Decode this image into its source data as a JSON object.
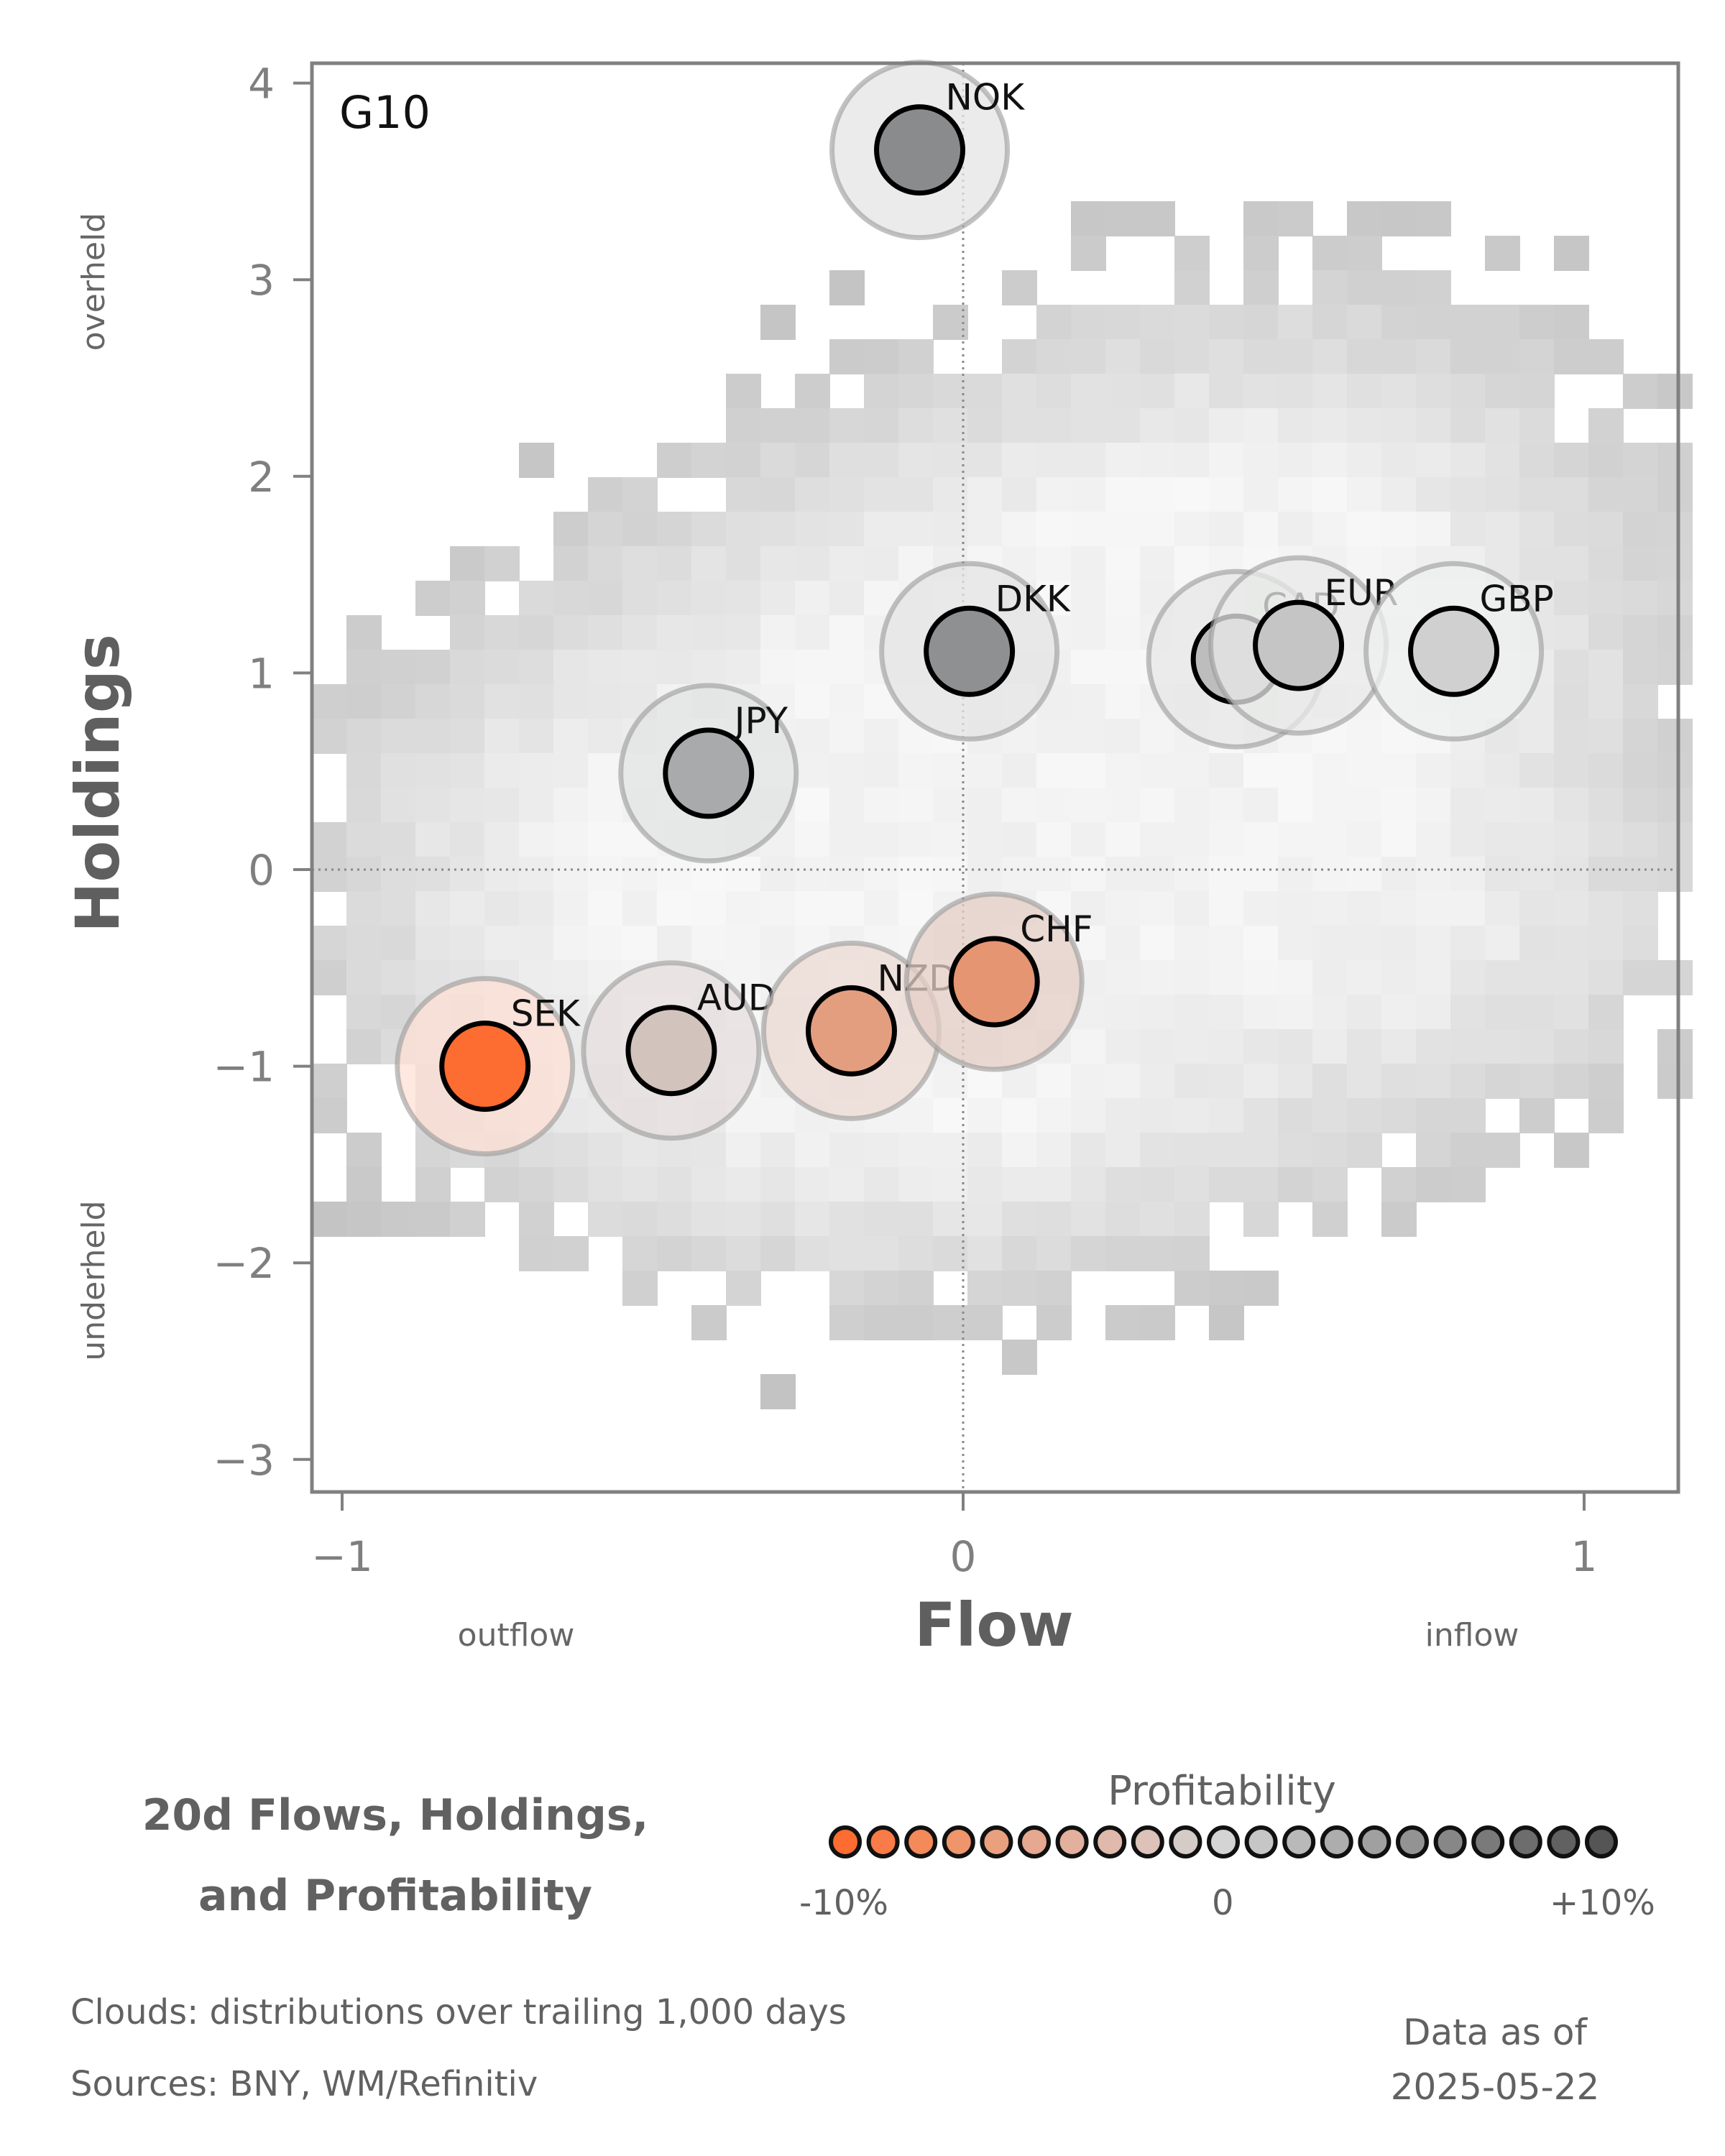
{
  "chart_data": {
    "type": "scatter",
    "title": "20d Flows, Holdings, and Profitability",
    "panel_label": "G10",
    "xlabel": "Flow",
    "ylabel": "Holdings",
    "x_side_labels": {
      "left": "outflow",
      "right": "inflow"
    },
    "y_side_labels": {
      "top": "overheld",
      "bottom": "underheld"
    },
    "xlim": [
      -1.05,
      1.15
    ],
    "ylim": [
      -3.15,
      4.1
    ],
    "xticks": [
      -1,
      0,
      1
    ],
    "xtick_labels": [
      "−1",
      "0",
      "1"
    ],
    "yticks": [
      4,
      3,
      2,
      1,
      0,
      -1,
      -2,
      -3
    ],
    "ytick_labels": [
      "4",
      "3",
      "2",
      "1",
      "0",
      "−1",
      "−2",
      "−3"
    ],
    "grid": false,
    "reference_lines": {
      "x": 0,
      "y": 0,
      "style": "dotted"
    },
    "background": "2D histogram clouds (grey) of trailing distributions",
    "points": [
      {
        "label": "NOK",
        "x": -0.07,
        "y": 3.66,
        "profitability_pct": 6,
        "color": "#8a8b8c",
        "halo": "#e4e4e4"
      },
      {
        "label": "DKK",
        "x": 0.01,
        "y": 1.11,
        "profitability_pct": 6,
        "color": "#8f9091",
        "halo": "#e4e4e4"
      },
      {
        "label": "JPY",
        "x": -0.41,
        "y": 0.49,
        "profitability_pct": 3,
        "color": "#a9aaab",
        "halo": "#e2e3e3"
      },
      {
        "label": "CAD",
        "x": 0.44,
        "y": 1.07,
        "profitability_pct": 1.5,
        "color": "#bcbdbc",
        "halo": "#e6e7e6"
      },
      {
        "label": "EUR",
        "x": 0.54,
        "y": 1.14,
        "profitability_pct": 1,
        "color": "#c4c5c4",
        "halo": "#e8e9e8"
      },
      {
        "label": "GBP",
        "x": 0.79,
        "y": 1.11,
        "profitability_pct": 0.5,
        "color": "#cfd0cf",
        "halo": "#eef0ef"
      },
      {
        "label": "SEK",
        "x": -0.77,
        "y": -1.0,
        "profitability_pct": -10,
        "color": "#fd6c30",
        "halo": "#fde0d4"
      },
      {
        "label": "AUD",
        "x": -0.47,
        "y": -0.92,
        "profitability_pct": -1,
        "color": "#d3c3bd",
        "halo": "#e5dfdd"
      },
      {
        "label": "NZD",
        "x": -0.18,
        "y": -0.82,
        "profitability_pct": -5,
        "color": "#e39e80",
        "halo": "#ecd9d2"
      },
      {
        "label": "CHF",
        "x": 0.05,
        "y": -0.57,
        "profitability_pct": -6,
        "color": "#e59572",
        "halo": "#e4cfc6"
      }
    ],
    "legend": {
      "title": "Profitability",
      "tick_labels": [
        "-10%",
        "0",
        "+10%"
      ],
      "colors": [
        "#fd6c30",
        "#f97b47",
        "#f4895a",
        "#ef956b",
        "#e9a07e",
        "#e6a890",
        "#e3b09e",
        "#dfb9ab",
        "#dcc2b9",
        "#d6ccc7",
        "#d4d4d4",
        "#c6c6c6",
        "#b9b9b9",
        "#adadad",
        "#a0a0a0",
        "#939393",
        "#878787",
        "#7a7a7a",
        "#6d6d6d",
        "#616161",
        "#555555"
      ]
    }
  },
  "footer": {
    "title_line1": "20d Flows, Holdings,",
    "title_line2": "and Profitability",
    "clouds_note": "Clouds:  distributions over trailing 1,000 days",
    "sources_note": "Sources:  BNY, WM/Refinitiv",
    "asof_line1": "Data as of",
    "asof_line2": "2025-05-22"
  }
}
